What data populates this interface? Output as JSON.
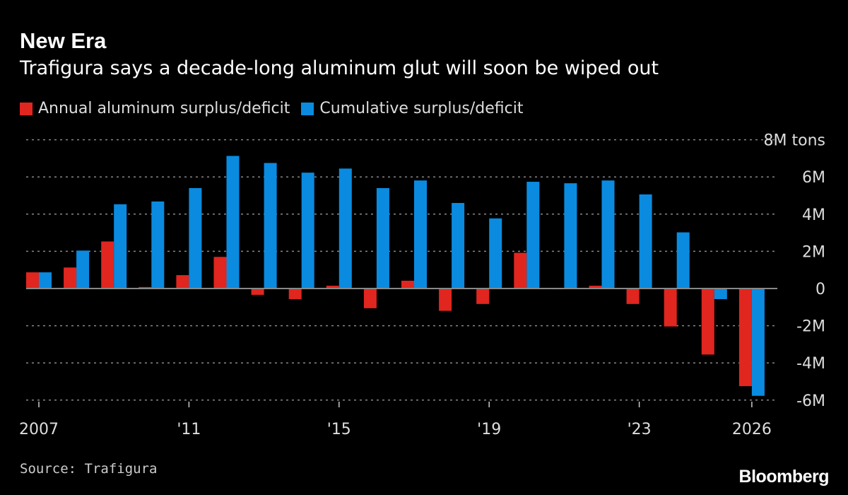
{
  "header": {
    "title": "New Era",
    "subtitle": "Trafigura says a decade-long aluminum glut will soon be wiped out"
  },
  "footer": {
    "source": "Source: Trafigura",
    "logo": "Bloomberg"
  },
  "chart_data": {
    "type": "bar",
    "categories": [
      2007,
      2008,
      2009,
      2010,
      2011,
      2012,
      2013,
      2014,
      2015,
      2016,
      2017,
      2018,
      2019,
      2020,
      2021,
      2022,
      2023,
      2024,
      2025,
      2026
    ],
    "x_tick_labels": [
      {
        "year": 2007,
        "label": "2007"
      },
      {
        "year": 2011,
        "label": "'11"
      },
      {
        "year": 2015,
        "label": "'15"
      },
      {
        "year": 2019,
        "label": "'19"
      },
      {
        "year": 2023,
        "label": "'23"
      },
      {
        "year": 2026,
        "label": "2026"
      }
    ],
    "y_ticks": [
      {
        "value": 8,
        "label": "8M tons"
      },
      {
        "value": 6,
        "label": "6M"
      },
      {
        "value": 4,
        "label": "4M"
      },
      {
        "value": 2,
        "label": "2M"
      },
      {
        "value": 0,
        "label": "0"
      },
      {
        "value": -2,
        "label": "-2M"
      },
      {
        "value": -4,
        "label": "-4M"
      },
      {
        "value": -6,
        "label": "-6M"
      }
    ],
    "ylim": [
      -6,
      8
    ],
    "unit": "M tons",
    "grid": true,
    "legend_position": "top-left",
    "series": [
      {
        "name": "Annual aluminum surplus/deficit",
        "color": "#e0261f",
        "values": [
          0.87,
          1.13,
          2.53,
          0.08,
          0.72,
          1.7,
          -0.34,
          -0.57,
          0.15,
          -1.06,
          0.42,
          -1.2,
          -0.83,
          1.92,
          -0.04,
          0.15,
          -0.83,
          -2.04,
          -3.55,
          -5.25
        ]
      },
      {
        "name": "Cumulative surplus/deficit",
        "color": "#0a8be0",
        "values": [
          0.87,
          2.04,
          4.53,
          4.68,
          5.4,
          7.13,
          6.75,
          6.23,
          6.45,
          5.4,
          5.81,
          4.6,
          3.77,
          5.74,
          5.66,
          5.81,
          5.06,
          3.02,
          -0.57,
          -5.77
        ]
      }
    ]
  }
}
